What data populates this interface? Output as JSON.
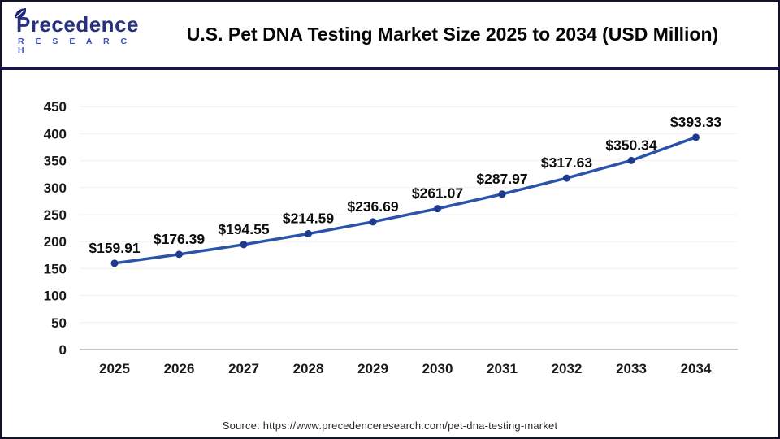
{
  "brand": {
    "name": "Precedence",
    "subname": "R E S E A R C H",
    "colors": {
      "primary": "#27317f",
      "secondary": "#3a4ab8",
      "leaf": "#1d2670"
    }
  },
  "header": {
    "title": "U.S. Pet DNA Testing Market Size 2025 to 2034 (USD Million)"
  },
  "footer": {
    "source": "Source: https://www.precedenceresearch.com/pet-dna-testing-market"
  },
  "chart_data": {
    "type": "line",
    "title": "U.S. Pet DNA Testing Market Size 2025 to 2034 (USD Million)",
    "xlabel": "",
    "ylabel": "",
    "categories": [
      "2025",
      "2026",
      "2027",
      "2028",
      "2029",
      "2030",
      "2031",
      "2032",
      "2033",
      "2034"
    ],
    "values": [
      159.91,
      176.39,
      194.55,
      214.59,
      236.69,
      261.07,
      287.97,
      317.63,
      350.34,
      393.33
    ],
    "labels": [
      "$159.91",
      "$176.39",
      "$194.55",
      "$214.59",
      "$236.69",
      "$261.07",
      "$287.97",
      "$317.63",
      "$350.34",
      "$393.33"
    ],
    "ylim": [
      0,
      450
    ],
    "yticks": [
      0,
      50,
      100,
      150,
      200,
      250,
      300,
      350,
      400,
      450
    ],
    "grid": true,
    "legend": false,
    "colors": {
      "line": "#2a54a9",
      "marker": "#1d3a90",
      "grid": "#f0f0f0",
      "axis": "#c3c3c3"
    }
  }
}
